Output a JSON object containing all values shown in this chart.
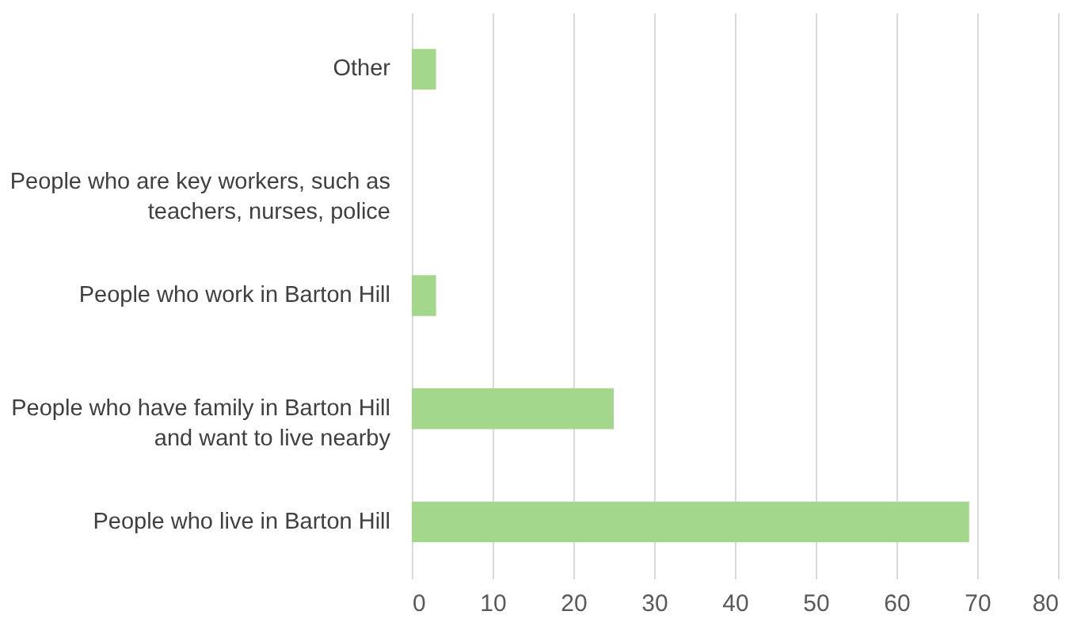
{
  "chart_data": {
    "type": "bar",
    "orientation": "horizontal",
    "categories": [
      "Other",
      "People who are key workers, such as teachers, nurses, police",
      "People who work in Barton Hill",
      "People who have family in Barton Hill and want to live nearby",
      "People who live in Barton Hill"
    ],
    "values": [
      3,
      0,
      3,
      25,
      69
    ],
    "color": "#a3d78c",
    "xlim": [
      0,
      80
    ],
    "xticks": [
      0,
      10,
      20,
      30,
      40,
      50,
      60,
      70,
      80
    ],
    "grid": "x"
  }
}
